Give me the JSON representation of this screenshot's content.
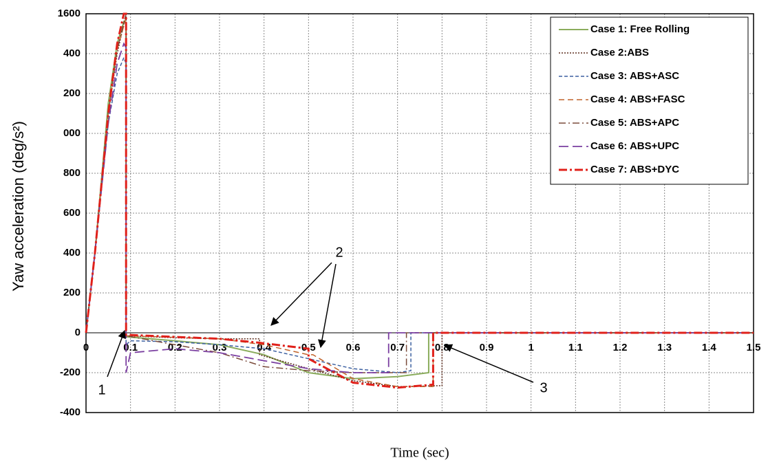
{
  "chart_data": {
    "type": "line",
    "y_label": "Yaw acceleration (deg/s²)",
    "x_label": "Time (sec)",
    "xlim": [
      0,
      1.5
    ],
    "xticks": [
      0,
      0.1,
      0.2,
      0.3,
      0.4,
      0.5,
      0.6,
      0.7,
      0.8,
      0.9,
      1,
      1.1,
      1.2,
      1.3,
      1.4,
      1.5
    ],
    "ylim": [
      -400,
      1600
    ],
    "yticks": [
      -400,
      -200,
      0,
      {
        "value": 200,
        "label": "200"
      },
      400,
      600,
      {
        "value": 800,
        "label": "800"
      },
      {
        "value": 1000,
        "label": "000"
      },
      {
        "value": 1200,
        "label": "200"
      },
      {
        "value": 1400,
        "label": "400"
      },
      1600
    ],
    "grid": true,
    "legend": "top-right",
    "annotations": [
      "1",
      "2",
      "3"
    ],
    "series": [
      {
        "name": "Case 1: Free Rolling",
        "color": "#8aac5c",
        "x": [
          0,
          0.02,
          0.05,
          0.07,
          0.085,
          0.09,
          0.09,
          0.2,
          0.3,
          0.4,
          0.5,
          0.6,
          0.7,
          0.77,
          0.77,
          1.5
        ],
        "values": [
          0,
          400,
          1150,
          1450,
          1560,
          1550,
          -20,
          -40,
          -60,
          -110,
          -200,
          -230,
          -220,
          -200,
          0,
          0
        ]
      },
      {
        "name": "Case 2:ABS",
        "color": "#5a2a1a",
        "x": [
          0,
          0.02,
          0.05,
          0.07,
          0.09,
          0.09,
          0.2,
          0.3,
          0.39,
          0.39,
          0.5,
          0.6,
          0.7,
          0.8,
          0.8,
          1.5
        ],
        "values": [
          0,
          400,
          1100,
          1400,
          1600,
          -15,
          -25,
          -30,
          -30,
          -110,
          -180,
          -240,
          -270,
          -265,
          0,
          0
        ]
      },
      {
        "name": "Case 3: ABS+ASC",
        "color": "#3b5fa0",
        "x": [
          0,
          0.02,
          0.05,
          0.07,
          0.085,
          0.09,
          0.09,
          0.1,
          0.2,
          0.3,
          0.4,
          0.5,
          0.6,
          0.7,
          0.73,
          0.73,
          1.5
        ],
        "values": [
          0,
          400,
          1050,
          1300,
          1380,
          1350,
          -60,
          -40,
          -45,
          -60,
          -80,
          -130,
          -180,
          -200,
          -190,
          0,
          0
        ]
      },
      {
        "name": "Case 4: ABS+FASC",
        "color": "#c0622a",
        "x": [
          0,
          0.02,
          0.05,
          0.07,
          0.09,
          0.09,
          0.3,
          0.4,
          0.5,
          0.51,
          0.6,
          0.7,
          0.78,
          0.78,
          1.5
        ],
        "values": [
          0,
          400,
          1100,
          1420,
          1580,
          -15,
          -30,
          -60,
          -110,
          -110,
          -230,
          -270,
          -270,
          0,
          0
        ]
      },
      {
        "name": "Case 5: ABS+APC",
        "color": "#7a4a3a",
        "x": [
          0,
          0.02,
          0.05,
          0.07,
          0.09,
          0.09,
          0.2,
          0.3,
          0.4,
          0.5,
          0.6,
          0.7,
          0.72,
          0.72,
          1.5
        ],
        "values": [
          0,
          400,
          1100,
          1420,
          1600,
          -15,
          -60,
          -100,
          -170,
          -190,
          -200,
          -200,
          -200,
          0,
          0
        ]
      },
      {
        "name": "Case 6: ABS+UPC",
        "color": "#7a3ea0",
        "x": [
          0,
          0.02,
          0.05,
          0.07,
          0.085,
          0.09,
          0.09,
          0.1,
          0.2,
          0.3,
          0.4,
          0.5,
          0.6,
          0.68,
          0.68,
          1.5
        ],
        "values": [
          0,
          400,
          1050,
          1350,
          1450,
          1430,
          -200,
          -100,
          -80,
          -100,
          -140,
          -180,
          -200,
          -200,
          0,
          0
        ]
      },
      {
        "name": "Case 7: ABS+DYC",
        "color": "#e0201a",
        "x": [
          0,
          0.02,
          0.05,
          0.07,
          0.085,
          0.09,
          0.09,
          0.3,
          0.39,
          0.5,
          0.5,
          0.6,
          0.7,
          0.78,
          0.78,
          1.5
        ],
        "values": [
          0,
          400,
          1100,
          1450,
          1600,
          1600,
          -10,
          -30,
          -50,
          -80,
          -130,
          -250,
          -275,
          -260,
          0,
          0
        ]
      }
    ]
  }
}
